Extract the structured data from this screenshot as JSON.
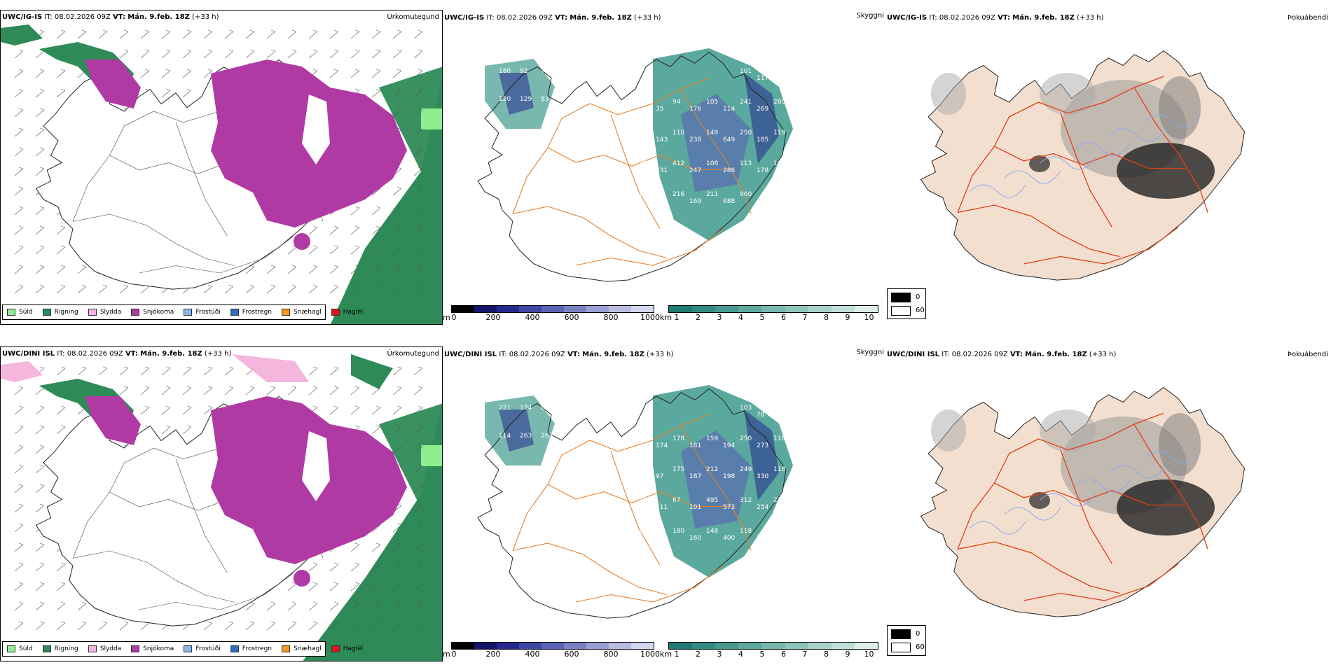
{
  "rows": [
    {
      "model": "UWC/IG-IS",
      "run_info": "IT: 08.02.2026 09Z",
      "vt_label": "VT:",
      "valid_time": "Mán. 9.feb. 18Z",
      "lead": "(+33 h)"
    },
    {
      "model": "UWC/DINI ISL",
      "run_info": "IT: 08.02.2026 09Z",
      "vt_label": "VT:",
      "valid_time": "Mán. 9.feb. 18Z",
      "lead": "(+33 h)"
    }
  ],
  "panel_names": {
    "precip_type": "Úrkomutegund",
    "visibility": "Skyggni",
    "fog_index": "Þokuábendi"
  },
  "precip_legend": [
    {
      "label": "Súld",
      "color": "#90ee90"
    },
    {
      "label": "Rigning",
      "color": "#2e8b57"
    },
    {
      "label": "Slydda",
      "color": "#f4b6dc"
    },
    {
      "label": "Snjókoma",
      "color": "#b03aa4"
    },
    {
      "label": "Frostúði",
      "color": "#87b8ee"
    },
    {
      "label": "Frostregn",
      "color": "#2c6fc0"
    },
    {
      "label": "Snæhagl",
      "color": "#f39a1d"
    },
    {
      "label": "Haglél",
      "color": "#e0141e"
    }
  ],
  "elevation_bar": {
    "unit": "m",
    "ticks": [
      "0",
      "200",
      "400",
      "600",
      "800",
      "1000"
    ],
    "colors": [
      "#000000",
      "#15156a",
      "#25288e",
      "#3e46a4",
      "#5a63b4",
      "#7a82c4",
      "#9aa0d2",
      "#b8bddf",
      "#d3d6ec"
    ]
  },
  "km_bar": {
    "unit": "km",
    "ticks": [
      "1",
      "2",
      "3",
      "4",
      "5",
      "6",
      "7",
      "8",
      "9",
      "10"
    ],
    "colors": [
      "#1f7a72",
      "#318b82",
      "#47998f",
      "#5fa89d",
      "#77b6ab",
      "#8fc4ba",
      "#a8d2c9",
      "#c2e0d9",
      "#dcefea"
    ]
  },
  "fog_legend": {
    "low": "0",
    "high": "60",
    "low_color": "#000000",
    "high_color": "#ffffff"
  },
  "labels_top": [
    "180",
    "92",
    "76",
    "120",
    "129",
    "83",
    "101",
    "117",
    "108",
    "207",
    "35",
    "94",
    "176",
    "105",
    "114",
    "241",
    "269",
    "280",
    "198",
    "143",
    "110",
    "238",
    "149",
    "649",
    "250",
    "185",
    "119",
    "109",
    "731",
    "412",
    "247",
    "108",
    "286",
    "113",
    "178",
    "160",
    "206",
    "208",
    "216",
    "169",
    "211",
    "688",
    "960",
    "340"
  ],
  "labels_bottom": [
    "221",
    "134",
    "87",
    "114",
    "263",
    "263",
    "103",
    "78",
    "180",
    "181",
    "174",
    "178",
    "181",
    "159",
    "194",
    "250",
    "273",
    "116",
    "136",
    "97",
    "175",
    "187",
    "212",
    "198",
    "249",
    "330",
    "118",
    "114",
    "111",
    "67",
    "101",
    "495",
    "573",
    "312",
    "254",
    "227",
    "141",
    "174",
    "180",
    "160",
    "148",
    "400",
    "118",
    "204"
  ],
  "colors": {
    "rain": "#2e8b57",
    "snow": "#b03aa4",
    "drizzle": "#90ee90",
    "sleet": "#f4b6dc",
    "land_tan": "#f3dfcf",
    "roads": "#e8802a",
    "roads_red": "#e0401a",
    "rivers": "#8fa8ee"
  }
}
